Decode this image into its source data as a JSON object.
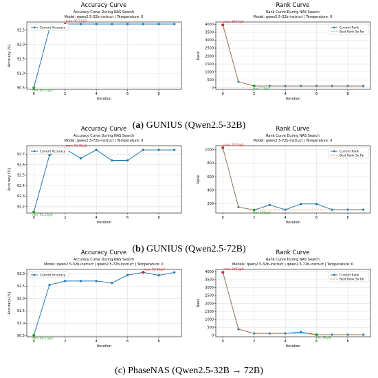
{
  "captions": [
    {
      "letter": "a",
      "text": " GUNIUS (Qwen2.5-32B)"
    },
    {
      "letter": "b",
      "text": " GUNIUS (Qwen2.5-72B)"
    },
    {
      "letter": "c",
      "text": " PhaseNAS (Qwen2.5-32B → 72B)"
    }
  ],
  "colors": {
    "series": "#1f77b4",
    "best": "#ff7f0e",
    "max": "#d62728",
    "min": "#2ca02c"
  },
  "chart_data": [
    {
      "type": "line",
      "title": "Accuracy Curve",
      "subtitle1": "Accuracy Curve During NAS Search",
      "subtitle2": "Model: qwen2.5-32b-instruct | Temperature: 0",
      "xlabel": "Iteration",
      "ylabel": "Accuracy (%)",
      "x": [
        0,
        1,
        2,
        3,
        4,
        5,
        6,
        7,
        8,
        9
      ],
      "xticks": [
        0,
        2,
        4,
        6,
        8
      ],
      "yticks": [
        "90.5",
        "91.0",
        "91.5",
        "92.0",
        "92.5"
      ],
      "ytick_values": [
        90.5,
        91.0,
        91.5,
        92.0,
        92.5
      ],
      "ylim": [
        90.45,
        92.78
      ],
      "series": [
        {
          "name": "Current Accuracy",
          "values": [
            90.51,
            92.55,
            92.71,
            92.71,
            92.71,
            92.71,
            92.71,
            92.71,
            92.71,
            92.71
          ]
        }
      ],
      "max_label": "max: 92.71@2",
      "max_index": 2,
      "min_label": "min: 90.51@0",
      "min_index": 0
    },
    {
      "type": "line",
      "title": "Rank Curve",
      "subtitle1": "Rank Curve During NAS Search",
      "subtitle2": "Model: qwen2.5-32b-instruct | Temperature: 0",
      "xlabel": "Iteration",
      "ylabel": "Rank",
      "x": [
        0,
        1,
        2,
        3,
        4,
        5,
        6,
        7,
        8,
        9
      ],
      "xticks": [
        0,
        2,
        4,
        6,
        8
      ],
      "yticks": [
        "0",
        "500",
        "1000",
        "1500",
        "2000",
        "2500",
        "3000",
        "3500",
        "4000"
      ],
      "ytick_values": [
        0,
        500,
        1000,
        1500,
        2000,
        2500,
        3000,
        3500,
        4000
      ],
      "ylim": [
        -100,
        4150
      ],
      "series": [
        {
          "name": "Current Rank",
          "values": [
            3967,
            380,
            110,
            110,
            110,
            110,
            110,
            110,
            110,
            110
          ]
        },
        {
          "name": "Best Rank So Far",
          "values": [
            3967,
            380,
            110,
            110,
            110,
            110,
            110,
            110,
            110,
            110
          ]
        }
      ],
      "max_label": "max: 3967@0",
      "max_index": 0,
      "min_label": "min: 110@2",
      "min_index": 2
    },
    {
      "type": "line",
      "title": "Accuracy Curve",
      "subtitle1": "Accuracy Curve During NAS Search",
      "subtitle2": "Model: qwen2.5-72b-instruct | Temperature: 0",
      "xlabel": "Iteration",
      "ylabel": "Accuracy (%)",
      "x": [
        0,
        1,
        2,
        3,
        4,
        5,
        6,
        7,
        8,
        9
      ],
      "xticks": [
        0,
        2,
        4,
        6,
        8
      ],
      "yticks": [
        "92.2",
        "92.3",
        "92.4",
        "92.5",
        "92.6",
        "92.7"
      ],
      "ytick_values": [
        92.2,
        92.3,
        92.4,
        92.5,
        92.6,
        92.7
      ],
      "ylim": [
        92.14,
        92.78
      ],
      "series": [
        {
          "name": "Current Accuracy",
          "values": [
            92.15,
            92.69,
            92.75,
            92.66,
            92.74,
            92.64,
            92.64,
            92.74,
            92.74,
            92.74
          ]
        }
      ],
      "max_label": "max: 92.75@2",
      "max_index": 2,
      "min_label": "min: 92.15@0",
      "min_index": 0
    },
    {
      "type": "line",
      "title": "Rank Curve",
      "subtitle1": "Rank Curve During NAS Search",
      "subtitle2": "Model: qwen2.5-72b-instruct | Temperature: 0",
      "xlabel": "Iteration",
      "ylabel": "Rank",
      "x": [
        0,
        1,
        2,
        3,
        4,
        5,
        6,
        7,
        8,
        9
      ],
      "xticks": [
        0,
        2,
        4,
        6,
        8
      ],
      "yticks": [
        "200",
        "400",
        "600",
        "800",
        "1000"
      ],
      "ytick_values": [
        200,
        400,
        600,
        800,
        1000
      ],
      "ylim": [
        60,
        1060
      ],
      "series": [
        {
          "name": "Current Rank",
          "values": [
            1029,
            150,
            105,
            180,
            110,
            195,
            195,
            110,
            110,
            110
          ]
        },
        {
          "name": "Best Rank So Far",
          "values": [
            1029,
            150,
            105,
            105,
            105,
            105,
            105,
            105,
            105,
            105
          ]
        }
      ],
      "max_label": "max: 1029@0",
      "max_index": 0,
      "min_label": "min: 105@2",
      "min_index": 2
    },
    {
      "type": "line",
      "title": "Accuracy Curve",
      "subtitle1": "Accuracy Curve During NAS Search",
      "subtitle2": "Model: qwen2.5-32b-instruct | qwen2.5-72b-instruct | Temperature: 0",
      "xlabel": "Iteration",
      "ylabel": "Accuracy (%)",
      "x": [
        0,
        1,
        2,
        3,
        4,
        5,
        6,
        7,
        8,
        9
      ],
      "xticks": [
        0,
        2,
        4,
        6,
        8
      ],
      "yticks": [
        "90.5",
        "91.0",
        "91.5",
        "92.0",
        "92.5",
        "93.0"
      ],
      "ytick_values": [
        90.5,
        91.0,
        91.5,
        92.0,
        92.5,
        93.0
      ],
      "ylim": [
        90.45,
        93.18
      ],
      "series": [
        {
          "name": "Current Accuracy",
          "values": [
            90.51,
            92.55,
            92.71,
            92.71,
            92.71,
            92.63,
            92.95,
            93.06,
            92.94,
            93.06
          ]
        }
      ],
      "max_label": "max: 93.06@7",
      "max_index": 7,
      "min_label": "min: 90.51@0",
      "min_index": 0
    },
    {
      "type": "line",
      "title": "Rank Curve",
      "subtitle1": "Rank Curve During NAS Search",
      "subtitle2": "Models: qwen2.5-32b-instruct | qwen2.5-72b-instruct | Temperature: 0",
      "xlabel": "Iteration",
      "ylabel": "Rank",
      "x": [
        0,
        1,
        2,
        3,
        4,
        5,
        6,
        7,
        8,
        9
      ],
      "xticks": [
        0,
        2,
        4,
        6,
        8
      ],
      "yticks": [
        "0",
        "500",
        "1000",
        "1500",
        "2000",
        "2500",
        "3000",
        "3500",
        "4000"
      ],
      "ytick_values": [
        0,
        500,
        1000,
        1500,
        2000,
        2500,
        3000,
        3500,
        4000
      ],
      "ylim": [
        -100,
        4150
      ],
      "series": [
        {
          "name": "Current Rank",
          "values": [
            3967,
            380,
            110,
            110,
            110,
            200,
            30,
            30,
            30,
            30
          ]
        },
        {
          "name": "Best Rank So Far",
          "values": [
            3967,
            380,
            110,
            110,
            110,
            110,
            30,
            30,
            30,
            30
          ]
        }
      ],
      "max_label": "max: 3967@0",
      "max_index": 0,
      "min_label": "min: 30@6",
      "min_index": 6
    }
  ]
}
